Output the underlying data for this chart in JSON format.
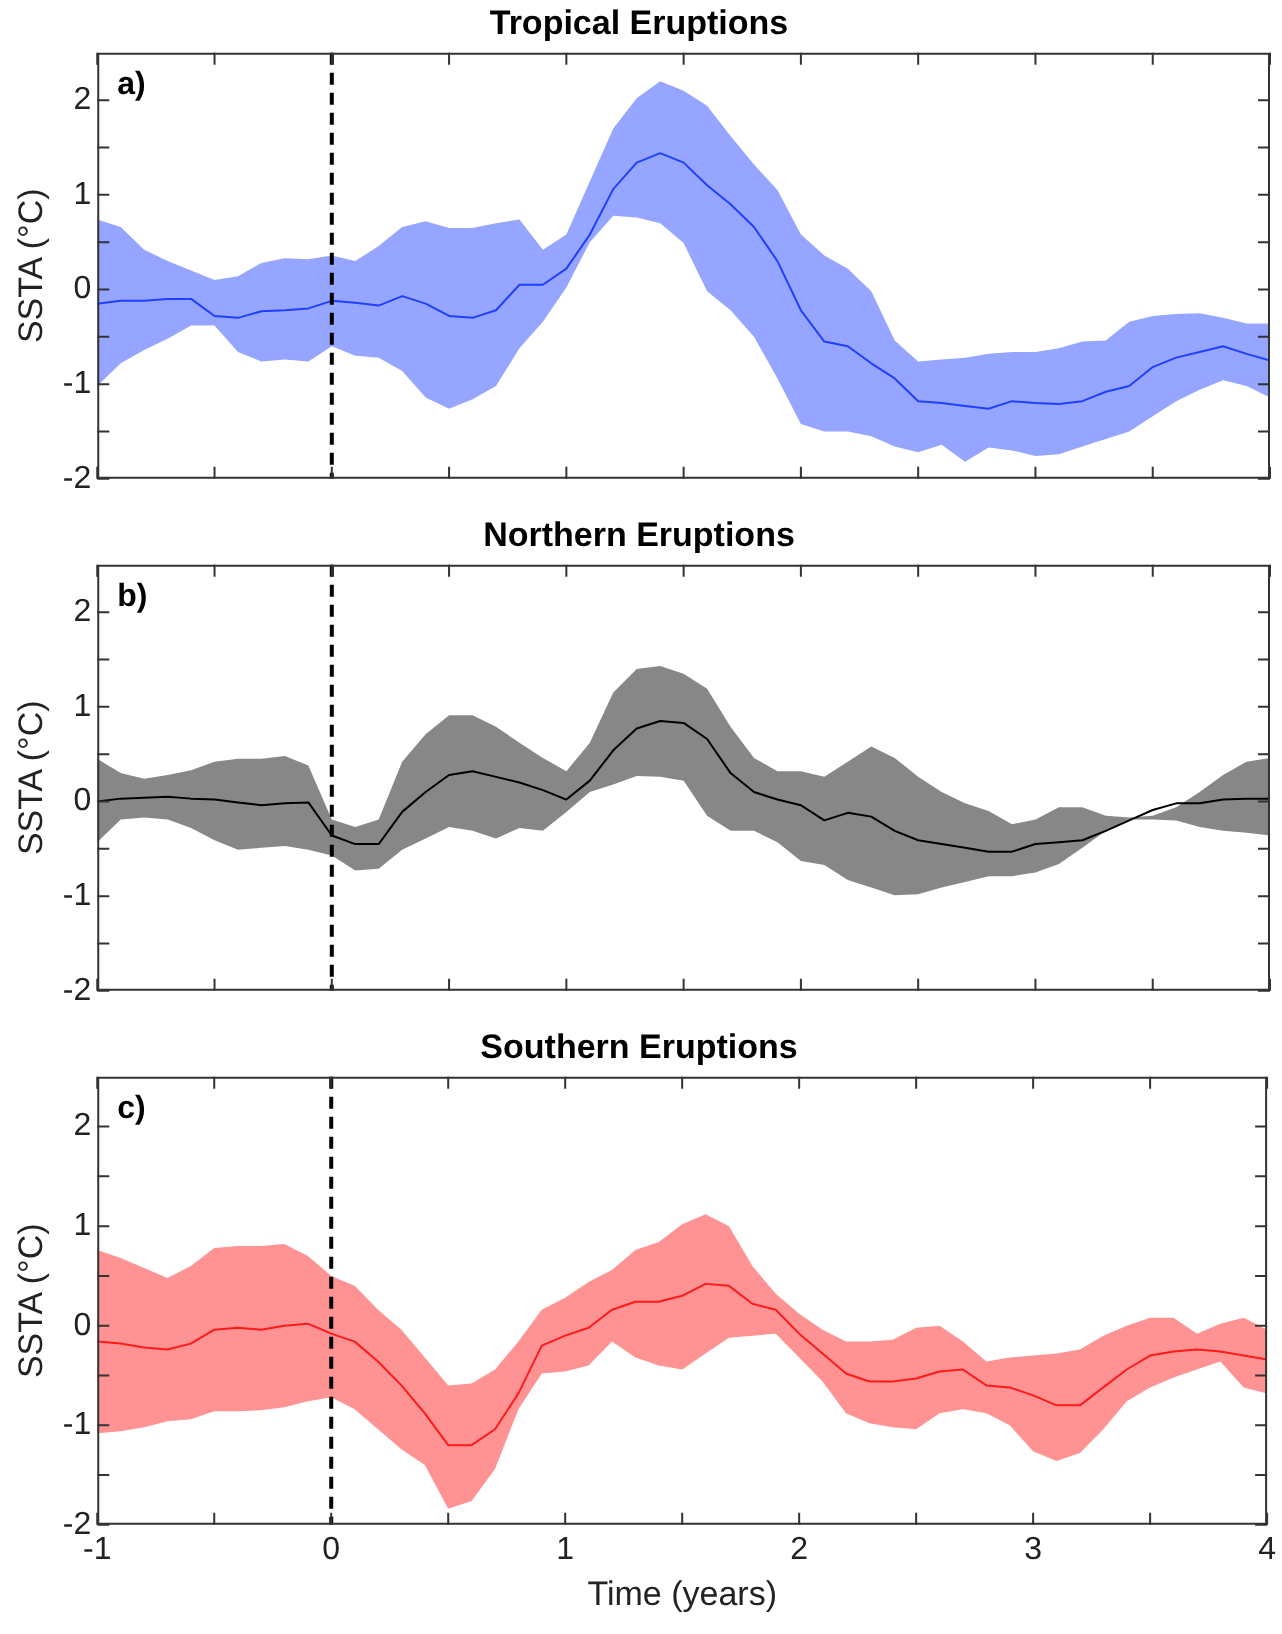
{
  "chart_data": [
    {
      "type": "line",
      "title": "Tropical Eruptions",
      "ylabel": "SSTA (°C)",
      "annotations": [
        "a)"
      ],
      "tick_labels": "y",
      "grid": false,
      "line_style": "solid",
      "x": [
        -1,
        -0.9,
        -0.8,
        -0.7,
        -0.6,
        -0.5,
        -0.4,
        -0.3,
        -0.2,
        -0.1,
        0,
        0.1,
        0.2,
        0.3,
        0.4,
        0.5,
        0.6,
        0.7,
        0.8,
        0.9,
        1,
        1.1,
        1.2,
        1.3,
        1.4,
        1.5,
        1.6,
        1.7,
        1.8,
        1.9,
        2,
        2.1,
        2.2,
        2.3,
        2.4,
        2.5,
        2.6,
        2.7,
        2.8,
        2.9,
        3,
        3.1,
        3.2,
        3.3,
        3.4,
        3.5,
        3.6,
        3.7,
        3.8,
        3.9,
        4
      ],
      "series": [
        {
          "color": "#2040ff",
          "values": [
            -0.15,
            -0.12,
            -0.12,
            -0.1,
            -0.1,
            -0.28,
            -0.3,
            -0.23,
            -0.22,
            -0.2,
            -0.12,
            -0.14,
            -0.17,
            -0.07,
            -0.15,
            -0.28,
            -0.3,
            -0.22,
            0.05,
            0.05,
            0.22,
            0.58,
            1.06,
            1.34,
            1.44,
            1.34,
            1.1,
            0.9,
            0.66,
            0.3,
            -0.22,
            -0.55,
            -0.6,
            -0.78,
            -0.94,
            -1.18,
            -1.2,
            -1.23,
            -1.26,
            -1.18,
            -1.2,
            -1.21,
            -1.18,
            -1.08,
            -1.02,
            -0.82,
            -0.72,
            -0.66,
            -0.6,
            -0.68,
            -0.75
          ],
          "lower": [
            -1.02,
            -0.78,
            -0.64,
            -0.52,
            -0.38,
            -0.38,
            -0.66,
            -0.76,
            -0.74,
            -0.76,
            -0.6,
            -0.7,
            -0.72,
            -0.86,
            -1.14,
            -1.26,
            -1.16,
            -1.02,
            -0.62,
            -0.34,
            0.02,
            0.5,
            0.78,
            0.76,
            0.7,
            0.49,
            -0.02,
            -0.22,
            -0.5,
            -0.94,
            -1.42,
            -1.5,
            -1.5,
            -1.55,
            -1.66,
            -1.72,
            -1.64,
            -1.82,
            -1.67,
            -1.7,
            -1.76,
            -1.74,
            -1.66,
            -1.58,
            -1.5,
            -1.34,
            -1.18,
            -1.06,
            -0.96,
            -1.02,
            -1.14
          ],
          "upper": [
            0.74,
            0.66,
            0.42,
            0.3,
            0.2,
            0.1,
            0.14,
            0.28,
            0.33,
            0.32,
            0.36,
            0.3,
            0.46,
            0.66,
            0.72,
            0.65,
            0.65,
            0.7,
            0.74,
            0.42,
            0.58,
            1.14,
            1.7,
            2.02,
            2.2,
            2.1,
            1.94,
            1.62,
            1.32,
            1.05,
            0.58,
            0.36,
            0.22,
            -0.02,
            -0.54,
            -0.76,
            -0.74,
            -0.72,
            -0.68,
            -0.66,
            -0.66,
            -0.62,
            -0.55,
            -0.54,
            -0.34,
            -0.28,
            -0.26,
            -0.25,
            -0.3,
            -0.36,
            -0.36
          ]
        }
      ],
      "xlim": [
        -1,
        4
      ],
      "xticks": [
        -1,
        {
          "value": -0.5,
          "label": null
        },
        0,
        {
          "value": 0.5,
          "label": null
        },
        1,
        {
          "value": 1.5,
          "label": null
        },
        2,
        {
          "value": 2.5,
          "label": null
        },
        3,
        {
          "value": 3.5,
          "label": null
        },
        4
      ],
      "ylim": [
        -2,
        2.5
      ],
      "yticks": [
        -2,
        {
          "value": -1.5,
          "label": null
        },
        -1,
        {
          "value": -0.5,
          "label": null
        },
        0,
        {
          "value": 0.5,
          "label": null
        },
        1,
        {
          "value": 1.5,
          "label": null
        },
        2
      ],
      "ref_lines": [
        {
          "axis": "x",
          "value": 0,
          "color": "#000000",
          "line_style": "dashed"
        }
      ]
    },
    {
      "type": "line",
      "title": "Northern Eruptions",
      "ylabel": "SSTA (°C)",
      "annotations": [
        "b)"
      ],
      "tick_labels": "y",
      "grid": false,
      "line_style": "solid",
      "x": [
        -1,
        -0.9,
        -0.8,
        -0.7,
        -0.6,
        -0.5,
        -0.4,
        -0.3,
        -0.2,
        -0.1,
        0,
        0.1,
        0.2,
        0.3,
        0.4,
        0.5,
        0.6,
        0.7,
        0.8,
        0.9,
        1,
        1.1,
        1.2,
        1.3,
        1.4,
        1.5,
        1.6,
        1.7,
        1.8,
        1.9,
        2,
        2.1,
        2.2,
        2.3,
        2.4,
        2.5,
        2.6,
        2.7,
        2.8,
        2.9,
        3,
        3.1,
        3.2,
        3.3,
        3.4,
        3.5,
        3.6,
        3.7,
        3.8,
        3.9,
        4
      ],
      "series": [
        {
          "color": "#000000",
          "values": [
            0,
            0.03,
            0.04,
            0.05,
            0.03,
            0.02,
            -0.01,
            -0.04,
            -0.02,
            -0.01,
            -0.36,
            -0.45,
            -0.45,
            -0.11,
            0.1,
            0.28,
            0.32,
            0.26,
            0.2,
            0.12,
            0.02,
            0.22,
            0.54,
            0.77,
            0.85,
            0.83,
            0.66,
            0.3,
            0.1,
            0.02,
            -0.04,
            -0.2,
            -0.12,
            -0.16,
            -0.31,
            -0.41,
            -0.45,
            -0.49,
            -0.53,
            -0.53,
            -0.45,
            -0.43,
            -0.41,
            -0.31,
            -0.2,
            -0.09,
            -0.02,
            -0.02,
            0.02,
            0.03,
            0.03
          ],
          "lower": [
            -0.43,
            -0.19,
            -0.17,
            -0.19,
            -0.28,
            -0.41,
            -0.51,
            -0.49,
            -0.47,
            -0.51,
            -0.57,
            -0.73,
            -0.71,
            -0.51,
            -0.39,
            -0.27,
            -0.31,
            -0.39,
            -0.28,
            -0.31,
            -0.11,
            0.1,
            0.18,
            0.27,
            0.26,
            0.22,
            -0.15,
            -0.31,
            -0.31,
            -0.43,
            -0.63,
            -0.67,
            -0.83,
            -0.91,
            -0.99,
            -0.98,
            -0.91,
            -0.85,
            -0.79,
            -0.79,
            -0.75,
            -0.66,
            -0.49,
            -0.31,
            -0.19,
            -0.19,
            -0.2,
            -0.27,
            -0.31,
            -0.33,
            -0.36
          ],
          "upper": [
            0.45,
            0.3,
            0.24,
            0.28,
            0.33,
            0.42,
            0.45,
            0.45,
            0.48,
            0.38,
            -0.19,
            -0.27,
            -0.19,
            0.42,
            0.71,
            0.91,
            0.91,
            0.79,
            0.62,
            0.46,
            0.32,
            0.62,
            1.15,
            1.4,
            1.43,
            1.35,
            1.19,
            0.79,
            0.46,
            0.32,
            0.32,
            0.26,
            0.42,
            0.58,
            0.46,
            0.26,
            0.1,
            -0.02,
            -0.1,
            -0.24,
            -0.19,
            -0.06,
            -0.06,
            -0.15,
            -0.17,
            -0.15,
            -0.06,
            0.1,
            0.28,
            0.42,
            0.46
          ]
        }
      ],
      "xlim": [
        -1,
        4
      ],
      "xticks": [
        -1,
        {
          "value": -0.5,
          "label": null
        },
        0,
        {
          "value": 0.5,
          "label": null
        },
        1,
        {
          "value": 1.5,
          "label": null
        },
        2,
        {
          "value": 2.5,
          "label": null
        },
        3,
        {
          "value": 3.5,
          "label": null
        },
        4
      ],
      "ylim": [
        -2,
        2.5
      ],
      "yticks": [
        -2,
        {
          "value": -1.5,
          "label": null
        },
        -1,
        {
          "value": -0.5,
          "label": null
        },
        0,
        {
          "value": 0.5,
          "label": null
        },
        1,
        {
          "value": 1.5,
          "label": null
        },
        2
      ],
      "ref_lines": [
        {
          "axis": "x",
          "value": 0,
          "color": "#000000",
          "line_style": "dashed"
        }
      ]
    },
    {
      "type": "line",
      "title": "Southern Eruptions",
      "xlabel": "Time (years)",
      "ylabel": "SSTA (°C)",
      "annotations": [
        "c)"
      ],
      "grid": false,
      "line_style": "solid",
      "x": [
        -1,
        -0.9,
        -0.8,
        -0.7,
        -0.6,
        -0.5,
        -0.4,
        -0.3,
        -0.2,
        -0.1,
        0,
        0.1,
        0.2,
        0.3,
        0.4,
        0.5,
        0.6,
        0.7,
        0.8,
        0.9,
        1,
        1.1,
        1.2,
        1.3,
        1.4,
        1.5,
        1.6,
        1.7,
        1.8,
        1.9,
        2,
        2.1,
        2.2,
        2.3,
        2.4,
        2.5,
        2.6,
        2.7,
        2.8,
        2.9,
        3,
        3.1,
        3.2,
        3.3,
        3.4,
        3.5,
        3.6,
        3.7,
        3.8,
        3.9,
        4
      ],
      "series": [
        {
          "color": "#ff1a1a",
          "values": [
            -0.16,
            -0.18,
            -0.22,
            -0.24,
            -0.18,
            -0.04,
            -0.02,
            -0.04,
            0,
            0.02,
            -0.08,
            -0.16,
            -0.36,
            -0.6,
            -0.88,
            -1.2,
            -1.2,
            -1.04,
            -0.68,
            -0.2,
            -0.1,
            -0.02,
            0.16,
            0.24,
            0.24,
            0.3,
            0.42,
            0.4,
            0.22,
            0.16,
            -0.08,
            -0.28,
            -0.48,
            -0.56,
            -0.56,
            -0.53,
            -0.46,
            -0.44,
            -0.6,
            -0.62,
            -0.7,
            -0.8,
            -0.8,
            -0.62,
            -0.44,
            -0.3,
            -0.26,
            -0.24,
            -0.26,
            -0.3,
            -0.34
          ],
          "lower": [
            -1.08,
            -1.06,
            -1.02,
            -0.96,
            -0.94,
            -0.86,
            -0.86,
            -0.85,
            -0.82,
            -0.76,
            -0.72,
            -0.84,
            -1.04,
            -1.24,
            -1.4,
            -1.84,
            -1.76,
            -1.44,
            -0.84,
            -0.48,
            -0.46,
            -0.4,
            -0.16,
            -0.32,
            -0.4,
            -0.44,
            -0.28,
            -0.12,
            -0.1,
            -0.08,
            -0.32,
            -0.56,
            -0.88,
            -0.98,
            -1.02,
            -1.04,
            -0.88,
            -0.84,
            -0.88,
            -1,
            -1.26,
            -1.36,
            -1.28,
            -1.04,
            -0.76,
            -0.62,
            -0.52,
            -0.44,
            -0.36,
            -0.62,
            -0.68
          ],
          "upper": [
            0.76,
            0.68,
            0.58,
            0.48,
            0.6,
            0.78,
            0.8,
            0.8,
            0.82,
            0.7,
            0.5,
            0.4,
            0.16,
            -0.04,
            -0.32,
            -0.6,
            -0.58,
            -0.44,
            -0.16,
            0.16,
            0.28,
            0.44,
            0.56,
            0.76,
            0.84,
            1.02,
            1.12,
            1,
            0.6,
            0.32,
            0.12,
            -0.04,
            -0.16,
            -0.16,
            -0.14,
            -0.02,
            0,
            -0.16,
            -0.36,
            -0.32,
            -0.3,
            -0.28,
            -0.24,
            -0.1,
            0,
            0.08,
            0.08,
            -0.08,
            0.02,
            0.08,
            -0.04
          ]
        }
      ],
      "xlim": [
        -1,
        4
      ],
      "xticks": [
        -1,
        {
          "value": -0.5,
          "label": null
        },
        0,
        {
          "value": 0.5,
          "label": null
        },
        1,
        {
          "value": 1.5,
          "label": null
        },
        2,
        {
          "value": 2.5,
          "label": null
        },
        3,
        {
          "value": 3.5,
          "label": null
        },
        4
      ],
      "ylim": [
        -2,
        2.5
      ],
      "yticks": [
        -2,
        {
          "value": -1.5,
          "label": null
        },
        -1,
        {
          "value": -0.5,
          "label": null
        },
        0,
        {
          "value": 0.5,
          "label": null
        },
        1,
        {
          "value": 1.5,
          "label": null
        },
        2
      ],
      "ref_lines": [
        {
          "axis": "x",
          "value": 0,
          "color": "#000000",
          "line_style": "dashed"
        }
      ]
    }
  ]
}
